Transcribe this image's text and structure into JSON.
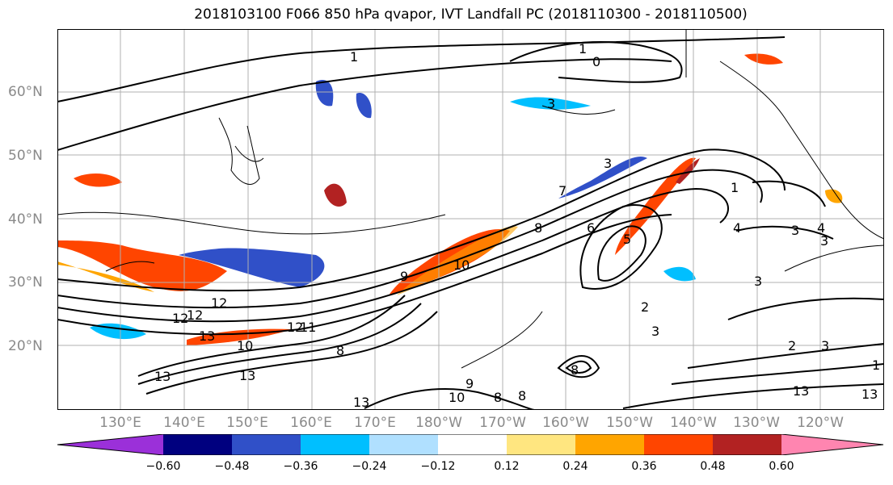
{
  "title": "2018103100 F066 850 hPa qvapor, IVT Landfall PC (2018110300 - 2018110500)",
  "latitude_labels": [
    "60°N",
    "50°N",
    "40°N",
    "30°N",
    "20°N"
  ],
  "longitude_labels": [
    "130°E",
    "140°E",
    "150°E",
    "160°E",
    "170°E",
    "180°W",
    "170°W",
    "160°W",
    "150°W",
    "140°W",
    "130°W",
    "120°W"
  ],
  "colorbar": {
    "ticks": [
      "−0.60",
      "−0.48",
      "−0.36",
      "−0.24",
      "−0.12",
      "0.12",
      "0.24",
      "0.36",
      "0.48",
      "0.60"
    ],
    "colors": [
      "#9b30d9",
      "#00007f",
      "#3050c8",
      "#00bfff",
      "#b0e0ff",
      "#ffffff",
      "#ffe680",
      "#ffa500",
      "#ff4500",
      "#b22222",
      "#ff85b0"
    ]
  },
  "contour_labels": [
    "1",
    "1",
    "0",
    "3",
    "3",
    "1",
    "8",
    "10",
    "9",
    "12",
    "13",
    "13",
    "12",
    "11",
    "10",
    "8",
    "7",
    "6",
    "5",
    "4",
    "3",
    "2",
    "3",
    "4",
    "3",
    "3",
    "2",
    "3",
    "1",
    "13",
    "13",
    "13",
    "10",
    "9",
    "8",
    "13",
    "12",
    "12",
    "8",
    "8"
  ]
}
